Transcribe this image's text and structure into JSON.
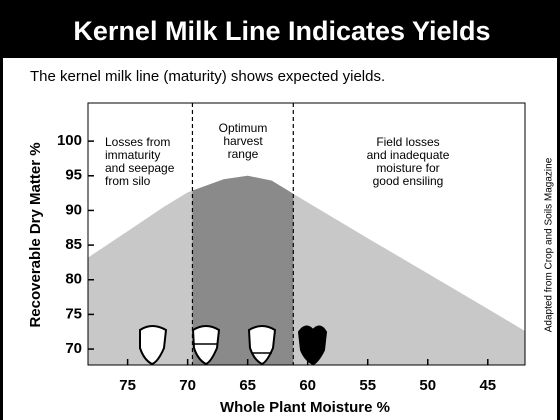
{
  "title": "Kernel Milk Line Indicates Yields",
  "subtitle": "The kernel milk line (maturity) shows expected yields.",
  "source": "Adapted from Crop and Soils Magazine",
  "chart_data": {
    "type": "area",
    "x_label": "Whole Plant Moisture %",
    "y_label": "Recoverable Dry Matter %",
    "x": [
      78.3,
      75,
      72,
      70,
      67,
      65,
      63,
      61,
      55,
      50,
      45,
      41.9
    ],
    "values": [
      83.2,
      87,
      90.5,
      92.6,
      94.5,
      95,
      94.3,
      92.2,
      86,
      80.9,
      75.8,
      72.6
    ],
    "color": "#c8c8c8",
    "optimum_range": [
      69.6,
      61.2
    ],
    "optimum_color": "#8a8a8a",
    "xlim": [
      78.3,
      41.9
    ],
    "ylim": [
      67.7,
      105.5
    ],
    "xticks": [
      75,
      70,
      65,
      60,
      55,
      50,
      45
    ],
    "yticks": [
      70,
      75,
      80,
      85,
      90,
      95,
      100
    ],
    "annotations": [
      {
        "lines": [
          "Losses from",
          "immaturity",
          "and seepage",
          "from silo"
        ]
      },
      {
        "lines": [
          "Optimum",
          "harvest",
          "range"
        ]
      },
      {
        "lines": [
          "Field losses",
          "and inadequate",
          "moisture for",
          "good ensiling"
        ]
      }
    ]
  }
}
